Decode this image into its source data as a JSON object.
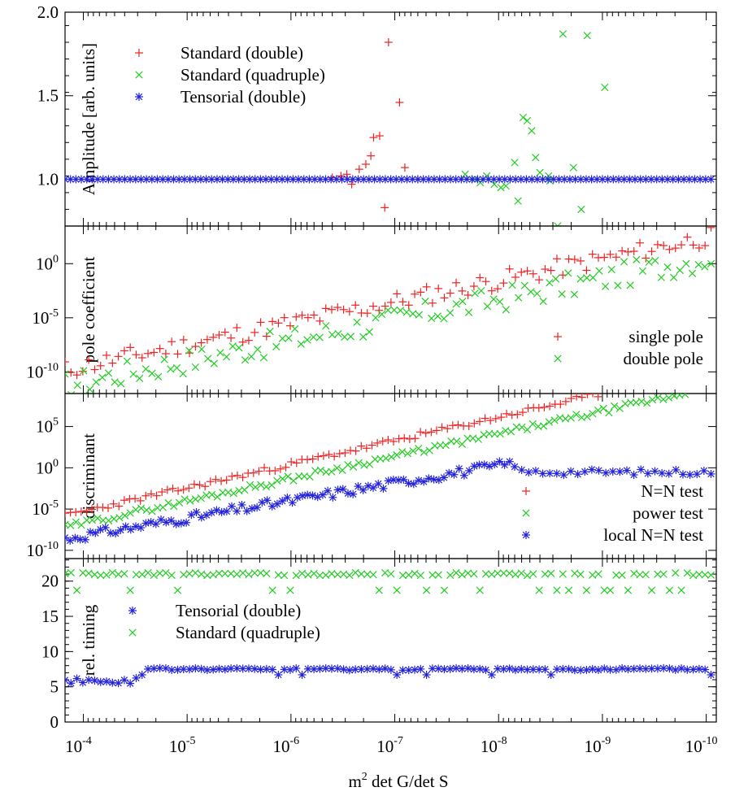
{
  "xlabel": "m² det G/det S",
  "x_ticks": [
    {
      "base": "10",
      "exp": "-4",
      "value": 0.0001
    },
    {
      "base": "10",
      "exp": "-5",
      "value": 1e-05
    },
    {
      "base": "10",
      "exp": "-6",
      "value": 1e-06
    },
    {
      "base": "10",
      "exp": "-7",
      "value": 1e-07
    },
    {
      "base": "10",
      "exp": "-8",
      "value": 1e-08
    },
    {
      "base": "10",
      "exp": "-9",
      "value": 1e-09
    },
    {
      "base": "10",
      "exp": "-10",
      "value": 1e-10
    }
  ],
  "colors": {
    "red": "#ee2222",
    "green": "#22cc22",
    "blue": "#2222dd",
    "axis": "#000000"
  },
  "chart_data": [
    {
      "type": "scatter",
      "ylabel": "Amplitude [arb. units]",
      "xscale": "log-reversed",
      "xlim": [
        0.00015,
        8e-11
      ],
      "yscale": "linear",
      "ylim": [
        0.72,
        2.0
      ],
      "yticks": [
        {
          "label": "1.0",
          "value": 1.0
        },
        {
          "label": "1.5",
          "value": 1.5
        },
        {
          "label": "2.0",
          "value": 2.0
        }
      ],
      "legend_position": "top-left",
      "series": [
        {
          "name": "Standard (double)",
          "marker": "plus",
          "color": "red",
          "points": [
            [
              4e-07,
              1.01
            ],
            [
              3.3e-07,
              1.02
            ],
            [
              2.9e-07,
              1.03
            ],
            [
              2.6e-07,
              0.97
            ],
            [
              2.2e-07,
              1.06
            ],
            [
              1.9e-07,
              1.09
            ],
            [
              1.7e-07,
              1.14
            ],
            [
              1.6e-07,
              1.25
            ],
            [
              1.4e-07,
              1.26
            ],
            [
              1.25e-07,
              0.83
            ],
            [
              1.15e-07,
              1.82
            ],
            [
              9e-08,
              1.46
            ],
            [
              8e-08,
              1.07
            ],
            [
              6e-08,
              1.0
            ]
          ]
        },
        {
          "name": "Standard (quadruple)",
          "marker": "cross",
          "color": "green",
          "points": [
            [
              2.1e-08,
              1.03
            ],
            [
              1.7e-08,
              1.0
            ],
            [
              1.5e-08,
              0.98
            ],
            [
              1.3e-08,
              1.02
            ],
            [
              1.1e-08,
              0.97
            ],
            [
              9.5e-09,
              0.95
            ],
            [
              8.5e-09,
              0.96
            ],
            [
              7e-09,
              1.1
            ],
            [
              6.5e-09,
              0.87
            ],
            [
              5.8e-09,
              1.37
            ],
            [
              5.3e-09,
              1.35
            ],
            [
              4.8e-09,
              1.29
            ],
            [
              4.4e-09,
              1.13
            ],
            [
              4e-09,
              1.04
            ],
            [
              3.3e-09,
              1.02
            ],
            [
              2.7e-09,
              0.72
            ],
            [
              2.4e-09,
              1.87
            ],
            [
              1.9e-09,
              1.07
            ],
            [
              1.6e-09,
              0.82
            ],
            [
              1.4e-09,
              1.86
            ],
            [
              9.5e-10,
              1.55
            ],
            [
              3.2e-09,
              0.99
            ]
          ]
        },
        {
          "name": "Tensorial (double)",
          "marker": "star",
          "color": "blue",
          "generator": {
            "from": 0.00015,
            "to": 9e-11,
            "count": 120,
            "value": 1.0,
            "amplitude": 0.0,
            "seed": 3
          }
        }
      ]
    },
    {
      "type": "scatter",
      "ylabel": "pole coefficient",
      "xscale": "log-reversed",
      "xlim": [
        0.00015,
        8e-11
      ],
      "yscale": "log",
      "ylim": [
        1e-12,
        3000.0
      ],
      "yticks": [
        {
          "base": "10",
          "exp": "0",
          "value": 1
        },
        {
          "base": "10",
          "exp": "-5",
          "value": 1e-05
        },
        {
          "base": "10",
          "exp": "-10",
          "value": 1e-10
        }
      ],
      "legend_position": "bottom-right",
      "series": [
        {
          "name": "single pole",
          "marker": "plus",
          "color": "red",
          "generator": {
            "from": 0.00015,
            "to": 9e-11,
            "count": 110,
            "log_start": -9.8,
            "log_end": 2.5,
            "scatter": 0.9,
            "seed": 11
          }
        },
        {
          "name": "double pole",
          "marker": "cross",
          "color": "green",
          "generator": {
            "from": 0.00015,
            "to": 9e-11,
            "count": 105,
            "log_start": -11.2,
            "log_end": 0.6,
            "scatter": 1.2,
            "seed": 17
          }
        }
      ]
    },
    {
      "type": "scatter",
      "ylabel": "discriminant",
      "xscale": "log-reversed",
      "xlim": [
        0.00015,
        8e-11
      ],
      "yscale": "log",
      "ylim": [
        1e-11,
        1000000000.0
      ],
      "yticks": [
        {
          "base": "10",
          "exp": "5",
          "value": 100000.0
        },
        {
          "base": "10",
          "exp": "0",
          "value": 1
        },
        {
          "base": "10",
          "exp": "-5",
          "value": 1e-05
        },
        {
          "base": "10",
          "exp": "-10",
          "value": 1e-10
        }
      ],
      "legend_position": "bottom-right",
      "series": [
        {
          "name": "N=N test",
          "marker": "plus",
          "color": "red",
          "generator": {
            "from": 0.00015,
            "to": 1.1e-09,
            "count": 100,
            "log_start": -5.8,
            "log_end": 8.9,
            "scatter": 0.35,
            "seed": 23
          }
        },
        {
          "name": "power test",
          "marker": "cross",
          "color": "green",
          "generator": {
            "from": 0.00015,
            "to": 1.6e-10,
            "count": 115,
            "log_start": -7.2,
            "log_end": 9.0,
            "scatter": 0.35,
            "seed": 29
          }
        },
        {
          "name": "local N=N test",
          "marker": "star",
          "color": "blue",
          "generator": {
            "from": 0.00015,
            "to": 7e-09,
            "count": 90,
            "log_start": -8.6,
            "log_end": 0.6,
            "scatter": 0.55,
            "seed": 31,
            "plateau_to": 9e-11,
            "plateau_value": 0.3,
            "plateau_count": 28
          }
        }
      ]
    },
    {
      "type": "scatter",
      "ylabel": "rel. timing",
      "xscale": "log-reversed",
      "xlim": [
        0.00015,
        8e-11
      ],
      "yscale": "linear",
      "ylim": [
        0,
        23.2
      ],
      "yticks": [
        {
          "label": "0",
          "value": 0
        },
        {
          "label": "5",
          "value": 5
        },
        {
          "label": "10",
          "value": 10
        },
        {
          "label": "15",
          "value": 15
        },
        {
          "label": "20",
          "value": 20
        }
      ],
      "legend_position": "center-left",
      "series": [
        {
          "name": "Tensorial (double)",
          "marker": "star",
          "color": "blue",
          "generator": {
            "from": 0.00015,
            "to": 9e-11,
            "count": 110,
            "value": 7.5,
            "amplitude": 0.15,
            "seed": 41,
            "dips": 0.12,
            "dip_value": 6.7,
            "early_to": 2.9e-05,
            "early_value": 5.9
          }
        },
        {
          "name": "Standard (quadruple)",
          "marker": "cross",
          "color": "green",
          "generator": {
            "from": 0.00015,
            "to": 9e-11,
            "count": 110,
            "value": 21.0,
            "amplitude": 0.2,
            "seed": 43,
            "dips": 0.14,
            "dip_value": 18.7
          }
        }
      ]
    }
  ]
}
